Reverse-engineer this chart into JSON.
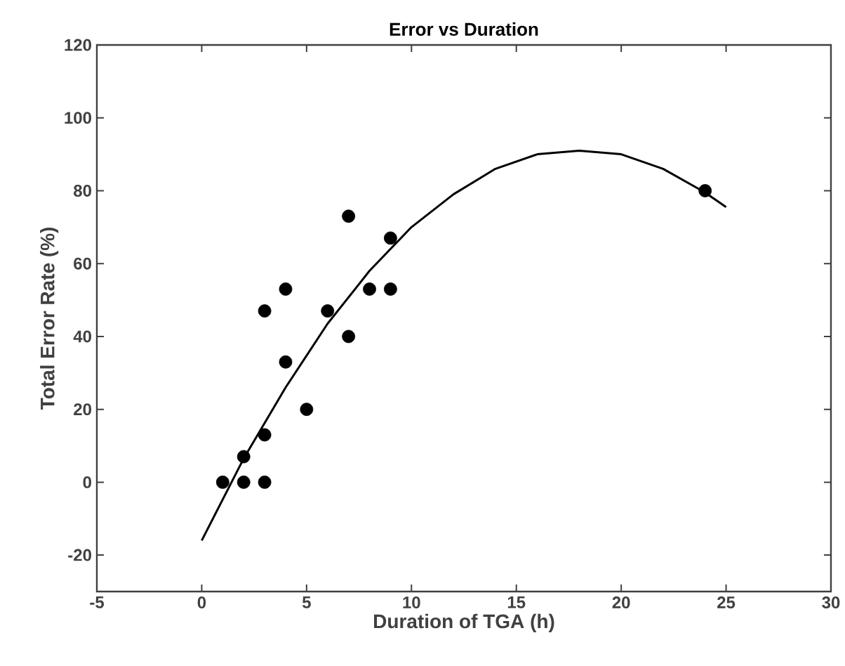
{
  "chart_data": {
    "type": "scatter",
    "title": "Error vs Duration",
    "xlabel": "Duration of TGA (h)",
    "ylabel": "Total Error Rate (%)",
    "xlim": [
      -5,
      30
    ],
    "ylim": [
      -30,
      120
    ],
    "xticks": [
      -5,
      0,
      5,
      10,
      15,
      20,
      25,
      30
    ],
    "yticks": [
      -20,
      0,
      20,
      40,
      60,
      80,
      100,
      120
    ],
    "grid": false,
    "series": [
      {
        "color": "#000000",
        "marker": "circle",
        "x": [
          1,
          2,
          3,
          2,
          3,
          5,
          4,
          3,
          4,
          6,
          7,
          8,
          9,
          9,
          7,
          24
        ],
        "values": [
          0,
          0,
          0,
          7,
          13,
          20,
          33,
          47,
          53,
          47,
          40,
          53,
          53,
          67,
          73,
          80
        ]
      },
      {
        "type": "line",
        "color": "#000000",
        "marker": "none",
        "line_style": "solid",
        "x": [
          0,
          2,
          4,
          6,
          8,
          10,
          12,
          14,
          16,
          18,
          20,
          22,
          24,
          25
        ],
        "values": [
          -16,
          6.5,
          26,
          43.5,
          58,
          70,
          79,
          86,
          90,
          91,
          90,
          86,
          79.5,
          75.5
        ]
      }
    ]
  }
}
